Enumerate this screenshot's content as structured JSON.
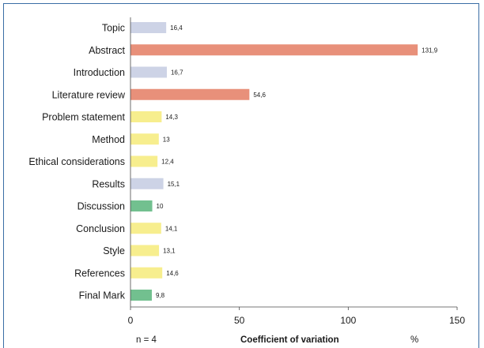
{
  "chart_data": {
    "type": "bar",
    "orientation": "horizontal",
    "categories": [
      "Topic",
      "Abstract",
      "Introduction",
      "Literature review",
      "Problem statement",
      "Method",
      "Ethical considerations",
      "Results",
      "Discussion",
      "Conclusion",
      "Style",
      "References",
      "Final Mark"
    ],
    "values": [
      16.4,
      131.9,
      16.7,
      54.6,
      14.3,
      13,
      12.4,
      15.1,
      10,
      14.1,
      13.1,
      14.6,
      9.8
    ],
    "value_labels": [
      "16,4",
      "131,9",
      "16,7",
      "54,6",
      "14,3",
      "13",
      "12,4",
      "15,1",
      "10",
      "14,1",
      "13,1",
      "14,6",
      "9,8"
    ],
    "bar_colors": [
      "#cdd3e6",
      "#e8907a",
      "#cdd3e6",
      "#e8907a",
      "#f7ee8e",
      "#f7ee8e",
      "#f7ee8e",
      "#cdd3e6",
      "#72c08f",
      "#f7ee8e",
      "#f7ee8e",
      "#f7ee8e",
      "#72c08f"
    ],
    "xlim": [
      0,
      150
    ],
    "xticks": [
      0,
      50,
      100,
      150
    ],
    "xtick_labels": [
      "0",
      "50",
      "100",
      "150"
    ],
    "xlabel": "Coefficient of variation",
    "xlabel_unit": "%",
    "annotation": "n = 4",
    "grid": false,
    "legend": "none"
  }
}
